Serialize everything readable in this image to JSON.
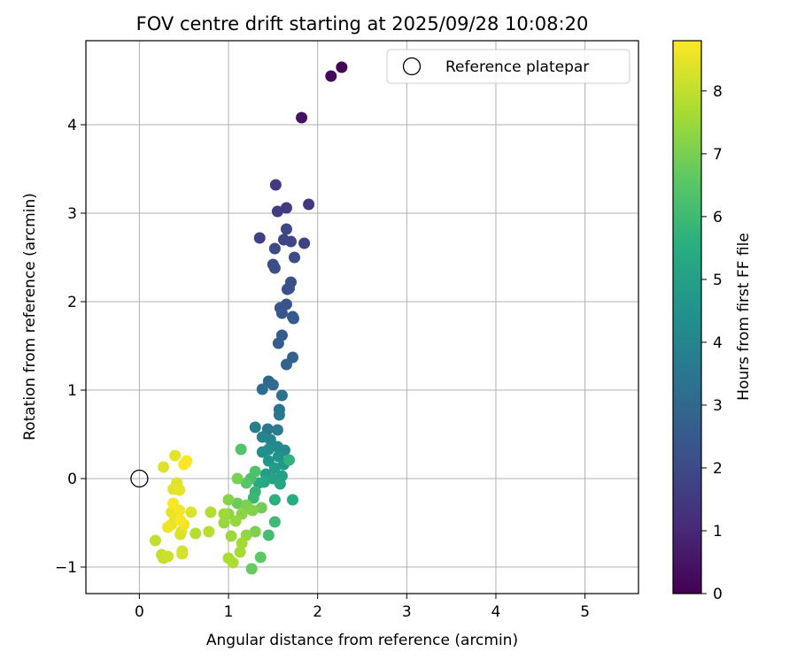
{
  "chart_data": {
    "type": "scatter",
    "title": "FOV centre drift starting at 2025/09/28 10:08:20",
    "xlabel": "Angular distance from reference (arcmin)",
    "ylabel": "Rotation from reference (arcmin)",
    "xlim": [
      -0.6,
      5.6
    ],
    "ylim": [
      -1.3,
      4.95
    ],
    "xticks": [
      "0",
      "1",
      "2",
      "3",
      "4",
      "5"
    ],
    "xtick_values": [
      0,
      1,
      2,
      3,
      4,
      5
    ],
    "yticks": [
      "−1",
      "0",
      "1",
      "2",
      "3",
      "4"
    ],
    "ytick_values": [
      -1,
      0,
      1,
      2,
      3,
      4
    ],
    "grid": true,
    "legend": {
      "placement": "top-right",
      "entry": "Reference platepar"
    },
    "reference": {
      "x": 0,
      "y": 0
    },
    "colorbar": {
      "label": "Hours from first FF file",
      "range": [
        0,
        8.8
      ],
      "colormap": "viridis",
      "ticks": [
        "0",
        "1",
        "2",
        "3",
        "4",
        "5",
        "6",
        "7",
        "8"
      ],
      "tick_values": [
        0,
        1,
        2,
        3,
        4,
        5,
        6,
        7,
        8
      ]
    },
    "points": [
      [
        2.27,
        4.65,
        0.1
      ],
      [
        2.15,
        4.55,
        0.2
      ],
      [
        1.82,
        4.08,
        0.4
      ],
      [
        1.9,
        3.1,
        1.45
      ],
      [
        1.53,
        3.32,
        1.5
      ],
      [
        1.65,
        3.06,
        1.55
      ],
      [
        1.55,
        3.02,
        1.6
      ],
      [
        1.35,
        2.72,
        1.7
      ],
      [
        1.85,
        2.66,
        1.75
      ],
      [
        1.62,
        2.7,
        1.8
      ],
      [
        1.7,
        2.68,
        1.85
      ],
      [
        1.65,
        2.82,
        1.9
      ],
      [
        1.52,
        2.6,
        1.95
      ],
      [
        1.74,
        2.5,
        2.0
      ],
      [
        1.5,
        2.42,
        2.05
      ],
      [
        1.52,
        2.38,
        2.1
      ],
      [
        1.7,
        2.22,
        2.15
      ],
      [
        1.68,
        2.15,
        2.2
      ],
      [
        1.66,
        2.14,
        2.25
      ],
      [
        1.65,
        1.97,
        2.3
      ],
      [
        1.58,
        1.93,
        2.35
      ],
      [
        1.6,
        1.87,
        2.4
      ],
      [
        1.72,
        1.83,
        2.45
      ],
      [
        1.73,
        1.81,
        2.5
      ],
      [
        1.6,
        1.62,
        2.55
      ],
      [
        1.56,
        1.53,
        2.6
      ],
      [
        1.72,
        1.37,
        2.7
      ],
      [
        1.65,
        1.29,
        2.8
      ],
      [
        1.45,
        1.1,
        3.0
      ],
      [
        1.5,
        1.06,
        3.1
      ],
      [
        1.38,
        1.01,
        3.2
      ],
      [
        1.6,
        0.94,
        3.3
      ],
      [
        1.57,
        0.78,
        3.4
      ],
      [
        1.57,
        0.72,
        3.5
      ],
      [
        1.44,
        0.56,
        3.6
      ],
      [
        1.55,
        0.55,
        3.7
      ],
      [
        1.3,
        0.58,
        3.8
      ],
      [
        1.38,
        0.47,
        3.9
      ],
      [
        1.47,
        0.44,
        4.0
      ],
      [
        1.55,
        0.36,
        4.1
      ],
      [
        1.63,
        0.32,
        4.2
      ],
      [
        1.45,
        0.33,
        4.3
      ],
      [
        1.38,
        0.3,
        4.4
      ],
      [
        1.56,
        0.25,
        4.5
      ],
      [
        1.45,
        0.2,
        4.6
      ],
      [
        1.62,
        0.16,
        4.7
      ],
      [
        1.52,
        0.12,
        4.8
      ],
      [
        1.42,
        0.05,
        4.9
      ],
      [
        1.6,
        0.03,
        5.0
      ],
      [
        1.5,
        0.0,
        5.1
      ],
      [
        1.58,
        -0.06,
        5.2
      ],
      [
        1.4,
        -0.04,
        5.3
      ],
      [
        1.34,
        -0.05,
        5.4
      ],
      [
        1.72,
        -0.24,
        5.5
      ],
      [
        1.52,
        -0.24,
        5.6
      ],
      [
        1.68,
        0.21,
        5.7
      ],
      [
        1.3,
        -0.15,
        5.8
      ],
      [
        1.28,
        -0.22,
        5.9
      ],
      [
        1.52,
        -0.49,
        6.0
      ],
      [
        1.45,
        -0.64,
        6.1
      ],
      [
        1.25,
        0.0,
        6.2
      ],
      [
        1.3,
        0.08,
        6.3
      ],
      [
        1.14,
        0.33,
        6.4
      ],
      [
        1.2,
        -0.05,
        6.5
      ],
      [
        1.36,
        -0.89,
        6.6
      ],
      [
        1.26,
        -1.02,
        6.7
      ],
      [
        1.1,
        -0.28,
        6.8
      ],
      [
        1.37,
        -0.33,
        6.9
      ],
      [
        1.1,
        0.0,
        7.0
      ],
      [
        1.2,
        -0.3,
        7.05
      ],
      [
        1.3,
        -0.6,
        7.1
      ],
      [
        1.27,
        -0.36,
        7.15
      ],
      [
        1.0,
        -0.24,
        7.2
      ],
      [
        1.15,
        -0.4,
        7.25
      ],
      [
        1.0,
        -0.4,
        7.3
      ],
      [
        1.2,
        -0.64,
        7.35
      ],
      [
        1.08,
        -0.48,
        7.4
      ],
      [
        0.95,
        -0.5,
        7.45
      ],
      [
        1.03,
        -0.65,
        7.5
      ],
      [
        0.95,
        -0.4,
        7.55
      ],
      [
        1.15,
        -0.73,
        7.6
      ],
      [
        1.13,
        -0.83,
        7.65
      ],
      [
        1.0,
        -0.9,
        7.7
      ],
      [
        1.05,
        -0.95,
        7.75
      ],
      [
        0.8,
        -0.38,
        7.8
      ],
      [
        0.63,
        -0.62,
        7.85
      ],
      [
        0.78,
        -0.6,
        7.9
      ],
      [
        0.18,
        -0.7,
        8.0
      ],
      [
        0.25,
        -0.86,
        8.05
      ],
      [
        0.27,
        -0.9,
        8.1
      ],
      [
        0.32,
        -0.88,
        8.15
      ],
      [
        0.48,
        -0.85,
        8.2
      ],
      [
        0.48,
        -0.82,
        8.25
      ],
      [
        0.46,
        -0.63,
        8.3
      ],
      [
        0.47,
        -0.6,
        8.35
      ],
      [
        0.58,
        -0.38,
        8.35
      ],
      [
        0.27,
        0.13,
        8.4
      ],
      [
        0.42,
        -0.05,
        8.4
      ],
      [
        0.4,
        0.26,
        8.45
      ],
      [
        0.38,
        -0.12,
        8.45
      ],
      [
        0.45,
        -0.13,
        8.5
      ],
      [
        0.36,
        -0.38,
        8.5
      ],
      [
        0.4,
        -0.45,
        8.55
      ],
      [
        0.36,
        -0.52,
        8.55
      ],
      [
        0.32,
        -0.55,
        8.6
      ],
      [
        0.5,
        -0.52,
        8.6
      ],
      [
        0.45,
        -0.36,
        8.65
      ],
      [
        0.5,
        0.16,
        8.7
      ],
      [
        0.53,
        0.2,
        8.7
      ],
      [
        0.38,
        -0.28,
        8.75
      ],
      [
        0.46,
        -0.47,
        8.75
      ],
      [
        0.52,
        0.18,
        8.8
      ]
    ]
  }
}
